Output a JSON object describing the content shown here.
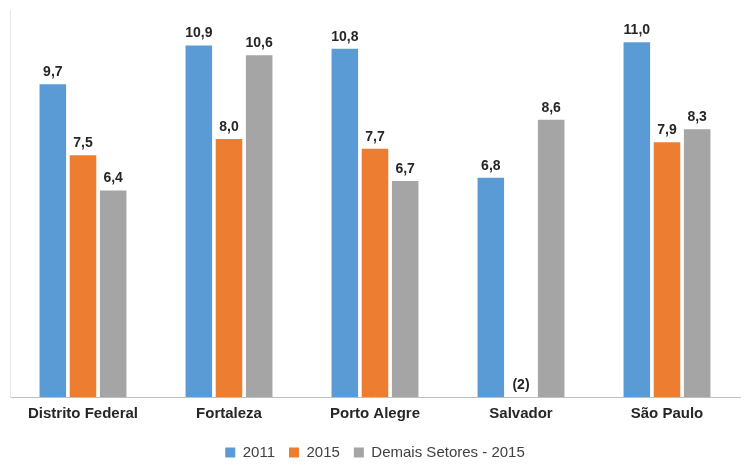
{
  "chart_data": {
    "type": "bar",
    "categories": [
      "Distrito Federal",
      "Fortaleza",
      "Porto Alegre",
      "Salvador",
      "São Paulo"
    ],
    "series": [
      {
        "name": "2011",
        "color": "#5b9bd5",
        "values": [
          9.7,
          10.9,
          10.8,
          6.8,
          11.0
        ],
        "value_labels": [
          "9,7",
          "10,9",
          "10,8",
          "6,8",
          "11,0"
        ]
      },
      {
        "name": "2015",
        "color": "#ed7d31",
        "values": [
          7.5,
          8.0,
          7.7,
          null,
          7.9
        ],
        "value_labels": [
          "7,5",
          "8,0",
          "7,7",
          "(2)",
          "7,9"
        ]
      },
      {
        "name": "Demais Setores - 2015",
        "color": "#a5a5a5",
        "values": [
          6.4,
          10.6,
          6.7,
          8.6,
          8.3
        ],
        "value_labels": [
          "6,4",
          "10,6",
          "6,7",
          "8,6",
          "8,3"
        ]
      }
    ],
    "ylim": [
      0,
      12
    ],
    "grid": false,
    "legend": "bottom",
    "data_labels": true,
    "tick_labels": "x"
  }
}
